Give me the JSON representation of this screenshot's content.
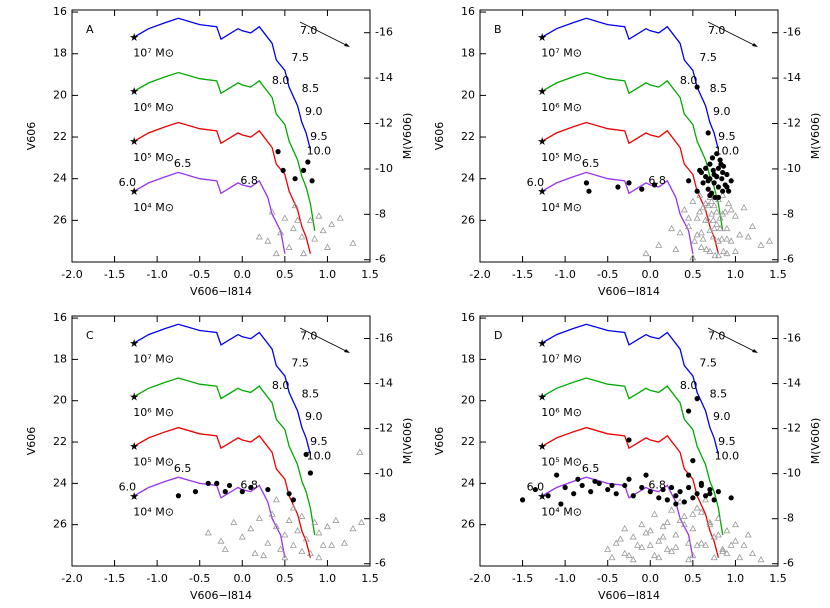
{
  "model": {
    "tracks": [
      {
        "color": "#0000ee",
        "x": [
          -1.27,
          -1.1,
          -0.9,
          -0.75,
          -0.5,
          -0.3,
          -0.25,
          -0.05,
          0.0,
          0.1,
          0.2,
          0.35,
          0.4,
          0.5,
          0.55,
          0.65,
          0.7,
          0.75,
          0.8
        ],
        "y": [
          17.2,
          16.8,
          16.5,
          16.3,
          16.6,
          16.7,
          17.3,
          16.8,
          16.9,
          17.0,
          16.7,
          17.5,
          18.3,
          18.8,
          19.6,
          20.5,
          21.3,
          21.8,
          22.6
        ]
      },
      {
        "color": "#00aa00",
        "x": [
          -1.27,
          -1.1,
          -0.9,
          -0.75,
          -0.5,
          -0.3,
          -0.25,
          -0.05,
          0.0,
          0.1,
          0.2,
          0.35,
          0.4,
          0.5,
          0.55,
          0.65,
          0.7,
          0.75,
          0.8,
          0.85
        ],
        "y": [
          19.8,
          19.4,
          19.1,
          18.9,
          19.2,
          19.3,
          19.9,
          19.4,
          19.5,
          19.6,
          19.3,
          20.1,
          20.9,
          21.4,
          22.2,
          23.1,
          23.9,
          24.4,
          25.2,
          26.5
        ]
      },
      {
        "color": "#ee0000",
        "x": [
          -1.27,
          -1.1,
          -0.9,
          -0.75,
          -0.5,
          -0.3,
          -0.25,
          -0.05,
          0.0,
          0.1,
          0.2,
          0.35,
          0.4,
          0.5,
          0.55,
          0.65,
          0.7,
          0.75,
          0.8
        ],
        "y": [
          22.2,
          21.8,
          21.5,
          21.3,
          21.6,
          21.7,
          22.3,
          21.8,
          21.9,
          22.0,
          21.7,
          22.5,
          23.3,
          23.8,
          24.6,
          25.5,
          26.3,
          26.8,
          27.6
        ]
      },
      {
        "color": "#9933ee",
        "x": [
          -1.27,
          -1.1,
          -0.9,
          -0.75,
          -0.5,
          -0.3,
          -0.25,
          -0.05,
          0.0,
          0.1,
          0.2,
          0.3,
          0.35,
          0.45,
          0.5
        ],
        "y": [
          24.6,
          24.2,
          23.9,
          23.7,
          24.0,
          24.1,
          24.7,
          24.2,
          24.3,
          24.4,
          24.1,
          24.9,
          25.7,
          26.5,
          27.6
        ]
      }
    ],
    "annotations": [
      {
        "text": "7.0",
        "x": 0.78,
        "y": 16.9,
        "color": "#0000ee"
      },
      {
        "text": "7.5",
        "x": 0.68,
        "y": 18.2,
        "color": "#0000ee"
      },
      {
        "text": "8.0",
        "x": 0.45,
        "y": 19.3,
        "color": "#0000ee"
      },
      {
        "text": "8.5",
        "x": 0.8,
        "y": 19.7,
        "color": "#0000ee"
      },
      {
        "text": "9.0",
        "x": 0.84,
        "y": 20.8,
        "color": "#0000ee"
      },
      {
        "text": "9.5",
        "x": 0.9,
        "y": 22.0,
        "color": "#0000ee"
      },
      {
        "text": "10.0",
        "x": 0.9,
        "y": 22.7,
        "color": "#0000ee"
      },
      {
        "text": "6.0",
        "x": -1.35,
        "y": 24.2,
        "color": "#9933ee"
      },
      {
        "text": "6.5",
        "x": -0.7,
        "y": 23.3,
        "color": "#9933ee"
      },
      {
        "text": "6.8",
        "x": 0.08,
        "y": 24.1,
        "color": "#9933ee"
      },
      {
        "text": "10⁷ M⊙",
        "x": -1.28,
        "y": 18.0,
        "color": "#000000"
      },
      {
        "text": "10⁶ M⊙",
        "x": -1.28,
        "y": 20.6,
        "color": "#000000"
      },
      {
        "text": "10⁵ M⊙",
        "x": -1.28,
        "y": 23.0,
        "color": "#000000"
      },
      {
        "text": "10⁴ M⊙",
        "x": -1.28,
        "y": 25.4,
        "color": "#000000"
      }
    ]
  },
  "chart_data": [
    {
      "type": "scatter",
      "label": "A",
      "x_label": "V606−I814",
      "y_label": "V606",
      "y2_label": "M(V606)",
      "xlim": [
        -2.0,
        1.5
      ],
      "ylim": [
        15.9,
        28
      ],
      "y2lim": [
        -17,
        -5.9
      ],
      "xticks": [
        {
          "value": -2,
          "label": "-2.0"
        },
        -1.5,
        {
          "value": -1,
          "label": "-1.0"
        },
        -0.5,
        {
          "value": 0,
          "label": "0.0"
        },
        0.5,
        {
          "value": 1,
          "label": "1.0"
        },
        1.5
      ],
      "yticks": [
        16,
        18,
        20,
        22,
        24,
        26
      ],
      "y2ticks": [
        -16,
        -14,
        -12,
        -10,
        -8,
        -6
      ],
      "points": {
        "color": "#000000",
        "x": [
          0.42,
          0.48,
          0.62,
          0.72,
          0.77,
          0.82
        ],
        "y": [
          22.7,
          23.6,
          24.0,
          23.6,
          23.2,
          24.1
        ]
      },
      "triangles": {
        "color": "#999999",
        "x": [
          0.2,
          0.3,
          0.35,
          0.45,
          0.5,
          0.55,
          0.6,
          0.62,
          0.7,
          0.72,
          0.8,
          0.85,
          0.9,
          1.0,
          1.05,
          1.15,
          1.3,
          0.4,
          0.65,
          0.95
        ],
        "y": [
          26.8,
          27.0,
          25.6,
          26.6,
          25.9,
          27.3,
          26.4,
          25.3,
          26.8,
          27.6,
          26.0,
          26.9,
          25.8,
          27.3,
          26.2,
          25.9,
          27.1,
          27.6,
          26.0,
          26.5
        ]
      }
    },
    {
      "type": "scatter",
      "label": "B",
      "x_label": "V606−I814",
      "y_label": "V606",
      "y2_label": "M(V606)",
      "xlim": [
        -2.0,
        1.5
      ],
      "ylim": [
        15.9,
        28
      ],
      "y2lim": [
        -17,
        -5.9
      ],
      "xticks": [
        {
          "value": -2,
          "label": "-2.0"
        },
        -1.5,
        {
          "value": -1,
          "label": "-1.0"
        },
        -0.5,
        {
          "value": 0,
          "label": "0.0"
        },
        0.5,
        {
          "value": 1,
          "label": "1.0"
        },
        1.5
      ],
      "yticks": [
        16,
        18,
        20,
        22,
        24,
        26
      ],
      "y2ticks": [
        -16,
        -14,
        -12,
        -10,
        -8,
        -6
      ],
      "points": {
        "color": "#000000",
        "x": [
          -0.75,
          -0.72,
          -0.38,
          -0.25,
          -0.1,
          0.05,
          0.45,
          0.55,
          0.6,
          0.62,
          0.65,
          0.68,
          0.7,
          0.7,
          0.72,
          0.74,
          0.75,
          0.76,
          0.78,
          0.8,
          0.8,
          0.82,
          0.84,
          0.85,
          0.86,
          0.88,
          0.9,
          0.92,
          0.95,
          0.65,
          0.7,
          0.75,
          0.8,
          0.85,
          0.9,
          0.78,
          0.83,
          0.68,
          0.73,
          0.58,
          0.55,
          0.68
        ],
        "y": [
          24.2,
          24.6,
          24.4,
          24.2,
          24.5,
          24.3,
          24.1,
          24.6,
          23.7,
          24.2,
          23.9,
          24.5,
          23.3,
          24.0,
          24.7,
          23.6,
          24.2,
          24.9,
          23.9,
          23.5,
          24.4,
          23.1,
          24.0,
          24.6,
          23.4,
          24.3,
          23.8,
          24.6,
          24.1,
          23.5,
          24.8,
          23.8,
          24.9,
          23.7,
          24.4,
          22.8,
          23.3,
          24.1,
          23.0,
          23.6,
          19.6,
          21.8
        ]
      },
      "triangles": {
        "color": "#999999",
        "x": [
          0.4,
          0.45,
          0.5,
          0.52,
          0.55,
          0.58,
          0.6,
          0.62,
          0.65,
          0.66,
          0.68,
          0.7,
          0.72,
          0.74,
          0.75,
          0.76,
          0.78,
          0.8,
          0.82,
          0.84,
          0.85,
          0.88,
          0.9,
          0.92,
          0.95,
          1.0,
          1.05,
          1.1,
          1.2,
          1.3,
          0.3,
          0.35,
          0.5,
          0.55,
          0.6,
          0.65,
          0.7,
          0.75,
          0.8,
          0.85,
          0.9,
          0.95,
          1.0,
          0.62,
          0.7,
          0.78,
          0.86,
          0.58,
          0.68,
          0.74,
          0.82,
          0.9,
          1.15,
          0.45,
          0.25,
          -0.05,
          0.1,
          1.4,
          0.72,
          0.8
        ],
        "y": [
          25.5,
          26.3,
          25.1,
          27.0,
          25.9,
          24.8,
          26.6,
          25.4,
          25.2,
          27.4,
          26.0,
          24.9,
          25.7,
          26.8,
          25.3,
          27.7,
          26.2,
          25.0,
          25.9,
          26.9,
          24.8,
          25.6,
          26.4,
          25.2,
          27.0,
          25.8,
          26.7,
          25.4,
          26.3,
          27.2,
          27.4,
          26.6,
          27.8,
          26.7,
          27.3,
          26.0,
          27.5,
          26.4,
          27.0,
          25.7,
          26.9,
          25.5,
          27.5,
          26.9,
          26.5,
          25.6,
          27.5,
          25.6,
          25.3,
          26.0,
          26.4,
          27.6,
          26.8,
          25.9,
          26.4,
          27.6,
          27.2,
          27.0,
          25.1,
          27.7
        ]
      }
    },
    {
      "type": "scatter",
      "label": "C",
      "x_label": "V606−I814",
      "y_label": "V606",
      "y2_label": "M(V606)",
      "xlim": [
        -2.0,
        1.5
      ],
      "ylim": [
        15.9,
        28
      ],
      "y2lim": [
        -17,
        -5.9
      ],
      "xticks": [
        {
          "value": -2,
          "label": "-2.0"
        },
        -1.5,
        {
          "value": -1,
          "label": "-1.0"
        },
        -0.5,
        {
          "value": 0,
          "label": "0.0"
        },
        0.5,
        {
          "value": 1,
          "label": "1.0"
        },
        1.5
      ],
      "yticks": [
        16,
        18,
        20,
        22,
        24,
        26
      ],
      "y2ticks": [
        -16,
        -14,
        -12,
        -10,
        -8,
        -6
      ],
      "points": {
        "color": "#000000",
        "x": [
          -0.55,
          -0.4,
          -0.3,
          -0.2,
          -0.15,
          0.0,
          0.1,
          0.3,
          0.55,
          0.6,
          0.75,
          0.8,
          -0.75
        ],
        "y": [
          24.4,
          24.0,
          24.0,
          24.4,
          24.1,
          24.4,
          24.2,
          24.3,
          24.5,
          24.8,
          22.6,
          23.5,
          24.6
        ]
      },
      "triangles": {
        "color": "#999999",
        "x": [
          1.38,
          -0.4,
          -0.25,
          -0.1,
          0.0,
          0.1,
          0.2,
          0.3,
          0.35,
          0.4,
          0.45,
          0.5,
          0.55,
          0.6,
          0.65,
          0.7,
          0.75,
          0.8,
          0.85,
          0.9,
          0.95,
          1.0,
          1.1,
          1.2,
          1.3,
          1.4,
          0.25,
          0.5,
          0.7,
          -0.2,
          0.15,
          0.6,
          0.9,
          1.05,
          0.4
        ],
        "y": [
          22.5,
          26.4,
          26.8,
          25.9,
          26.6,
          26.2,
          25.7,
          26.9,
          25.5,
          26.1,
          27.2,
          26.5,
          25.8,
          27.0,
          26.3,
          25.6,
          26.7,
          27.4,
          25.9,
          26.4,
          27.0,
          26.1,
          25.8,
          26.9,
          26.2,
          25.9,
          27.5,
          27.6,
          27.3,
          27.2,
          27.4,
          25.2,
          27.6,
          27.0,
          24.8
        ]
      }
    },
    {
      "type": "scatter",
      "label": "D",
      "x_label": "V606−I814",
      "y_label": "V606",
      "y2_label": "M(V606)",
      "xlim": [
        -2.0,
        1.5
      ],
      "ylim": [
        15.9,
        28
      ],
      "y2lim": [
        -17,
        -5.9
      ],
      "xticks": [
        {
          "value": -2,
          "label": "-2.0"
        },
        -1.5,
        {
          "value": -1,
          "label": "-1.0"
        },
        -0.5,
        {
          "value": 0,
          "label": "0.0"
        },
        0.5,
        {
          "value": 1,
          "label": "1.0"
        },
        1.5
      ],
      "yticks": [
        16,
        18,
        20,
        22,
        24,
        26
      ],
      "y2ticks": [
        -16,
        -14,
        -12,
        -10,
        -8,
        -6
      ],
      "points": {
        "color": "#000000",
        "x": [
          -1.5,
          -1.35,
          -1.2,
          -1.1,
          -1.0,
          -0.9,
          -0.8,
          -0.7,
          -0.6,
          -0.5,
          -0.4,
          -0.3,
          -0.2,
          -0.1,
          0.0,
          0.1,
          0.15,
          0.2,
          0.25,
          0.3,
          0.35,
          0.4,
          0.45,
          0.5,
          0.55,
          0.6,
          0.65,
          0.7,
          0.75,
          0.8,
          0.95,
          -1.05,
          -0.85,
          -0.65,
          -0.45,
          -0.25,
          -0.05,
          0.3,
          0.45,
          0.5,
          0.6,
          0.7,
          0.45,
          0.55,
          -0.25
        ],
        "y": [
          24.8,
          24.3,
          24.6,
          23.6,
          24.2,
          24.5,
          24.1,
          24.4,
          24.0,
          24.3,
          24.5,
          24.1,
          24.6,
          24.2,
          24.4,
          24.7,
          24.3,
          24.8,
          24.2,
          24.6,
          24.4,
          24.9,
          24.2,
          24.7,
          24.5,
          24.1,
          24.6,
          24.3,
          24.8,
          24.4,
          24.7,
          25.0,
          23.8,
          23.9,
          24.1,
          23.8,
          23.6,
          25.0,
          23.6,
          22.9,
          24.0,
          24.5,
          20.5,
          19.9,
          21.9
        ]
      },
      "triangles": {
        "color": "#999999",
        "x": [
          -0.5,
          -0.4,
          -0.3,
          -0.2,
          -0.1,
          0.0,
          0.1,
          0.2,
          0.3,
          0.4,
          0.5,
          0.6,
          0.7,
          0.8,
          0.9,
          1.0,
          1.1,
          1.2,
          -0.45,
          -0.35,
          -0.25,
          -0.15,
          -0.05,
          0.05,
          0.15,
          0.25,
          0.35,
          0.45,
          0.55,
          0.65,
          0.75,
          0.85,
          0.95,
          1.05,
          -0.3,
          -0.1,
          0.1,
          0.3,
          0.5,
          0.7,
          0.9,
          0.0,
          0.2,
          0.4,
          0.6,
          0.8,
          1.0,
          0.35,
          0.5,
          0.65,
          -0.2,
          0.15,
          0.45,
          0.75,
          1.15,
          1.3,
          0.25,
          0.55,
          0.85,
          0.05
        ],
        "y": [
          27.2,
          26.9,
          27.4,
          26.6,
          27.1,
          26.3,
          26.8,
          25.9,
          26.5,
          25.6,
          26.2,
          25.4,
          26.0,
          25.7,
          26.3,
          26.8,
          27.0,
          27.4,
          27.6,
          26.7,
          27.5,
          27.0,
          26.4,
          27.5,
          26.1,
          27.3,
          25.8,
          26.9,
          25.2,
          27.0,
          26.6,
          27.3,
          27.0,
          27.6,
          26.2,
          26.0,
          27.6,
          27.1,
          27.5,
          25.9,
          27.4,
          27.0,
          27.2,
          26.0,
          26.9,
          26.5,
          26.0,
          24.9,
          25.5,
          24.8,
          27.7,
          26.6,
          27.7,
          27.6,
          26.5,
          27.7,
          25.3,
          27.0,
          27.2,
          25.5
        ]
      }
    }
  ]
}
